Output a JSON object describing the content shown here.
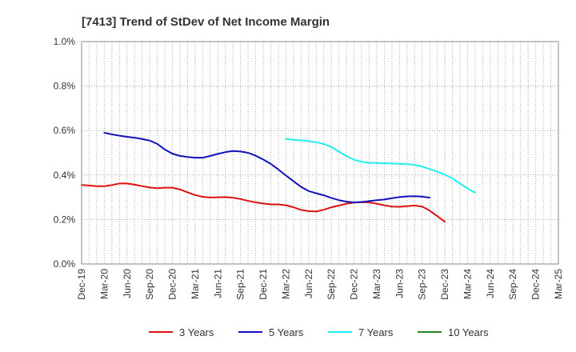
{
  "chart_data": {
    "type": "line",
    "title": "[7413]  Trend of StDev of Net Income Margin",
    "xlabel": "",
    "ylabel": "",
    "ylim": [
      0,
      1.0
    ],
    "y_ticks": [
      0.0,
      0.2,
      0.4,
      0.6,
      0.8,
      1.0
    ],
    "y_tick_labels": [
      "0.0%",
      "0.2%",
      "0.4%",
      "0.6%",
      "0.8%",
      "1.0%"
    ],
    "x_tick_labels": [
      "Dec-19",
      "Mar-20",
      "Jun-20",
      "Sep-20",
      "Dec-20",
      "Mar-21",
      "Jun-21",
      "Sep-21",
      "Dec-21",
      "Mar-22",
      "Jun-22",
      "Sep-22",
      "Dec-22",
      "Mar-23",
      "Jun-23",
      "Sep-23",
      "Dec-23",
      "Mar-24",
      "Jun-24",
      "Sep-24",
      "Dec-24",
      "Mar-25"
    ],
    "x_range_months": [
      0,
      63
    ],
    "grid": true,
    "legend_position": "bottom",
    "series": [
      {
        "name": "3 Years",
        "color": "#dd1111",
        "start_month": 0,
        "values": [
          0.355,
          0.353,
          0.35,
          0.35,
          0.355,
          0.362,
          0.362,
          0.357,
          0.35,
          0.344,
          0.341,
          0.343,
          0.343,
          0.335,
          0.322,
          0.31,
          0.302,
          0.299,
          0.3,
          0.301,
          0.298,
          0.292,
          0.284,
          0.277,
          0.272,
          0.268,
          0.268,
          0.264,
          0.255,
          0.243,
          0.238,
          0.236,
          0.244,
          0.255,
          0.263,
          0.271,
          0.276,
          0.278,
          0.277,
          0.271,
          0.264,
          0.258,
          0.257,
          0.26,
          0.263,
          0.258,
          0.24,
          0.215,
          0.19
        ]
      },
      {
        "name": "5 Years",
        "color": "#1111bb",
        "start_month": 3,
        "values": [
          0.59,
          0.583,
          0.577,
          0.572,
          0.568,
          0.562,
          0.555,
          0.54,
          0.515,
          0.496,
          0.486,
          0.481,
          0.478,
          0.478,
          0.486,
          0.495,
          0.503,
          0.508,
          0.506,
          0.5,
          0.487,
          0.47,
          0.45,
          0.425,
          0.398,
          0.372,
          0.347,
          0.328,
          0.318,
          0.309,
          0.297,
          0.287,
          0.28,
          0.277,
          0.279,
          0.283,
          0.287,
          0.29,
          0.296,
          0.301,
          0.304,
          0.305,
          0.303,
          0.298
        ]
      },
      {
        "name": "7 Years",
        "color": "#22eeee",
        "start_month": 27,
        "values": [
          0.563,
          0.558,
          0.556,
          0.553,
          0.547,
          0.54,
          0.526,
          0.505,
          0.485,
          0.469,
          0.459,
          0.455,
          0.454,
          0.453,
          0.452,
          0.45,
          0.449,
          0.446,
          0.438,
          0.427,
          0.415,
          0.402,
          0.385,
          0.362,
          0.34,
          0.32
        ]
      },
      {
        "name": "10 Years",
        "color": "#228822",
        "start_month": 0,
        "values": []
      }
    ]
  }
}
